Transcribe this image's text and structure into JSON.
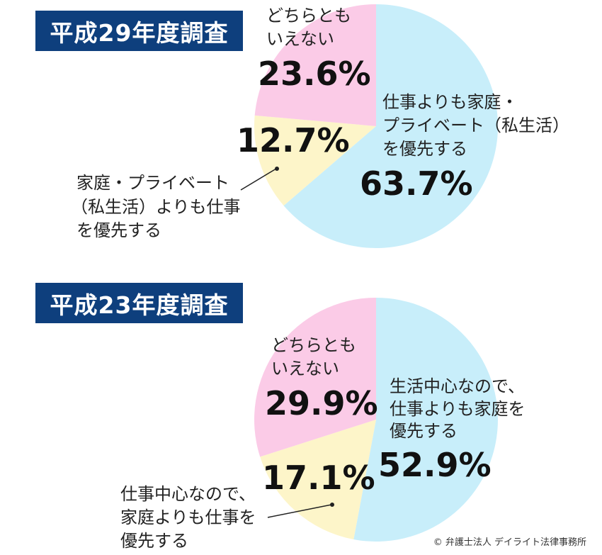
{
  "chart_data": [
    {
      "type": "pie",
      "title": "平成29年度調査",
      "slices": [
        {
          "label": [
            "仕事よりも家庭・",
            "プライベート（私生活）",
            "を優先する"
          ],
          "value": 63.7,
          "value_label": "63.7%",
          "color": "#c8eefa"
        },
        {
          "label": [
            "家庭・プライベート",
            "（私生活）よりも仕事",
            "を優先する"
          ],
          "value": 12.7,
          "value_label": "12.7%",
          "color": "#fdf5c9"
        },
        {
          "label": [
            "どちらとも",
            "いえない"
          ],
          "value": 23.6,
          "value_label": "23.6%",
          "color": "#fbcbe7"
        }
      ]
    },
    {
      "type": "pie",
      "title": "平成23年度調査",
      "slices": [
        {
          "label": [
            "生活中心なので、",
            "仕事よりも家庭を",
            "優先する"
          ],
          "value": 52.9,
          "value_label": "52.9%",
          "color": "#c8eefa"
        },
        {
          "label": [
            "仕事中心なので、",
            "家庭よりも仕事を",
            "優先する"
          ],
          "value": 17.1,
          "value_label": "17.1%",
          "color": "#fdf5c9"
        },
        {
          "label": [
            "どちらとも",
            "いえない"
          ],
          "value": 29.9,
          "value_label": "29.9%",
          "color": "#fbcbe7"
        }
      ]
    }
  ],
  "credit": "© 弁護士法人 デイライト法律事務所"
}
